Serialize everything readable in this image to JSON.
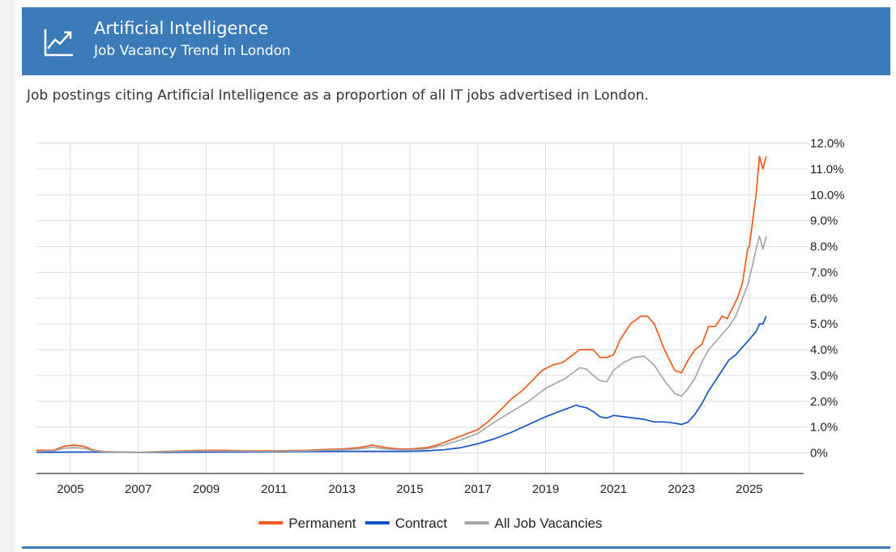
{
  "header": {
    "title": "Artificial Intelligence",
    "subtitle": "Job Vacancy Trend in London",
    "icon": "trend-up-icon",
    "background": "#3c7bba"
  },
  "description": "Job postings citing Artificial Intelligence as a proportion of all IT jobs advertised in London.",
  "chart_data": {
    "type": "line",
    "title": "",
    "xlabel": "",
    "ylabel": "",
    "xlim": [
      2004.0,
      2026.6
    ],
    "ylim": [
      -0.8,
      12.0
    ],
    "yticks": [
      0,
      1,
      2,
      3,
      4,
      5,
      6,
      7,
      8,
      9,
      10,
      11,
      12
    ],
    "ytick_labels": [
      "0%",
      "1.0%",
      "2.0%",
      "3.0%",
      "4.0%",
      "5.0%",
      "6.0%",
      "7.0%",
      "8.0%",
      "9.0%",
      "10.0%",
      "11.0%",
      "12.0%"
    ],
    "xticks": [
      2005,
      2007,
      2009,
      2011,
      2013,
      2015,
      2017,
      2019,
      2021,
      2023,
      2025
    ],
    "xtick_labels": [
      "2005",
      "2007",
      "2009",
      "2011",
      "2013",
      "2015",
      "2017",
      "2019",
      "2021",
      "2023",
      "2025"
    ],
    "grid": true,
    "y_axis_position": "right",
    "legend": "bottom",
    "series": [
      {
        "name": "Permanent",
        "color": "#f05a1a",
        "x": [
          2004.0,
          2004.5,
          2004.8,
          2005.1,
          2005.4,
          2005.7,
          2006.0,
          2006.5,
          2007.0,
          2008.0,
          2009.0,
          2009.5,
          2010.0,
          2011.0,
          2012.0,
          2012.5,
          2013.0,
          2013.5,
          2013.9,
          2014.3,
          2014.7,
          2015.0,
          2015.5,
          2015.8,
          2016.2,
          2016.6,
          2017.0,
          2017.3,
          2017.7,
          2018.0,
          2018.3,
          2018.6,
          2018.9,
          2019.2,
          2019.5,
          2019.8,
          2020.0,
          2020.2,
          2020.4,
          2020.6,
          2020.8,
          2021.0,
          2021.2,
          2021.5,
          2021.8,
          2022.0,
          2022.2,
          2022.5,
          2022.8,
          2023.0,
          2023.2,
          2023.4,
          2023.6,
          2023.8,
          2024.0,
          2024.2,
          2024.35,
          2024.5,
          2024.65,
          2024.8,
          2024.95,
          2025.0,
          2025.1,
          2025.2,
          2025.3,
          2025.4,
          2025.5
        ],
        "values": [
          0.1,
          0.1,
          0.25,
          0.3,
          0.25,
          0.1,
          0.05,
          0.03,
          0.02,
          0.07,
          0.1,
          0.1,
          0.08,
          0.08,
          0.1,
          0.13,
          0.15,
          0.2,
          0.3,
          0.2,
          0.15,
          0.15,
          0.2,
          0.3,
          0.5,
          0.7,
          0.9,
          1.2,
          1.7,
          2.1,
          2.4,
          2.8,
          3.2,
          3.4,
          3.5,
          3.8,
          4.0,
          4.0,
          4.0,
          3.7,
          3.7,
          3.8,
          4.4,
          5.0,
          5.3,
          5.3,
          5.0,
          4.0,
          3.2,
          3.1,
          3.6,
          4.0,
          4.2,
          4.9,
          4.9,
          5.3,
          5.2,
          5.6,
          6.0,
          6.6,
          7.9,
          8.0,
          9.0,
          10.0,
          11.5,
          11.0,
          11.5
        ]
      },
      {
        "name": "Contract",
        "color": "#1452c8",
        "x": [
          2004.0,
          2005.0,
          2006.0,
          2007.0,
          2008.0,
          2009.0,
          2010.0,
          2011.0,
          2012.0,
          2013.0,
          2014.0,
          2015.0,
          2015.5,
          2016.0,
          2016.5,
          2017.0,
          2017.5,
          2018.0,
          2018.5,
          2019.0,
          2019.3,
          2019.6,
          2019.9,
          2020.0,
          2020.2,
          2020.4,
          2020.6,
          2020.8,
          2021.0,
          2021.3,
          2021.6,
          2021.9,
          2022.2,
          2022.5,
          2022.8,
          2023.0,
          2023.2,
          2023.4,
          2023.6,
          2023.8,
          2024.0,
          2024.2,
          2024.4,
          2024.6,
          2024.8,
          2025.0,
          2025.2,
          2025.3,
          2025.4,
          2025.5
        ],
        "values": [
          0.02,
          0.03,
          0.03,
          0.02,
          0.02,
          0.03,
          0.03,
          0.04,
          0.05,
          0.06,
          0.06,
          0.06,
          0.08,
          0.12,
          0.2,
          0.35,
          0.55,
          0.8,
          1.1,
          1.4,
          1.55,
          1.7,
          1.85,
          1.8,
          1.75,
          1.6,
          1.4,
          1.35,
          1.45,
          1.4,
          1.35,
          1.3,
          1.2,
          1.2,
          1.15,
          1.1,
          1.2,
          1.5,
          1.9,
          2.4,
          2.8,
          3.2,
          3.6,
          3.8,
          4.1,
          4.4,
          4.7,
          5.0,
          5.0,
          5.3
        ]
      },
      {
        "name": "All Job Vacancies",
        "color": "#a6a6a6",
        "x": [
          2004.0,
          2004.5,
          2004.8,
          2005.1,
          2005.4,
          2005.7,
          2006.0,
          2007.0,
          2008.0,
          2009.0,
          2010.0,
          2011.0,
          2012.0,
          2013.0,
          2013.5,
          2013.9,
          2014.3,
          2014.7,
          2015.0,
          2015.5,
          2016.0,
          2016.5,
          2017.0,
          2017.5,
          2018.0,
          2018.5,
          2019.0,
          2019.3,
          2019.6,
          2019.9,
          2020.0,
          2020.2,
          2020.4,
          2020.6,
          2020.8,
          2021.0,
          2021.3,
          2021.6,
          2021.9,
          2022.2,
          2022.5,
          2022.8,
          2023.0,
          2023.2,
          2023.4,
          2023.6,
          2023.8,
          2024.0,
          2024.2,
          2024.4,
          2024.6,
          2024.8,
          2024.95,
          2025.1,
          2025.2,
          2025.3,
          2025.4,
          2025.5
        ],
        "values": [
          0.05,
          0.08,
          0.18,
          0.2,
          0.18,
          0.08,
          0.04,
          0.02,
          0.05,
          0.07,
          0.06,
          0.06,
          0.08,
          0.12,
          0.15,
          0.22,
          0.15,
          0.12,
          0.12,
          0.15,
          0.3,
          0.5,
          0.75,
          1.2,
          1.6,
          2.0,
          2.5,
          2.7,
          2.9,
          3.2,
          3.3,
          3.25,
          3.0,
          2.8,
          2.75,
          3.2,
          3.5,
          3.7,
          3.75,
          3.4,
          2.8,
          2.3,
          2.2,
          2.5,
          2.9,
          3.5,
          4.0,
          4.3,
          4.6,
          4.9,
          5.3,
          6.0,
          6.5,
          7.3,
          7.9,
          8.4,
          7.9,
          8.4
        ]
      }
    ]
  }
}
